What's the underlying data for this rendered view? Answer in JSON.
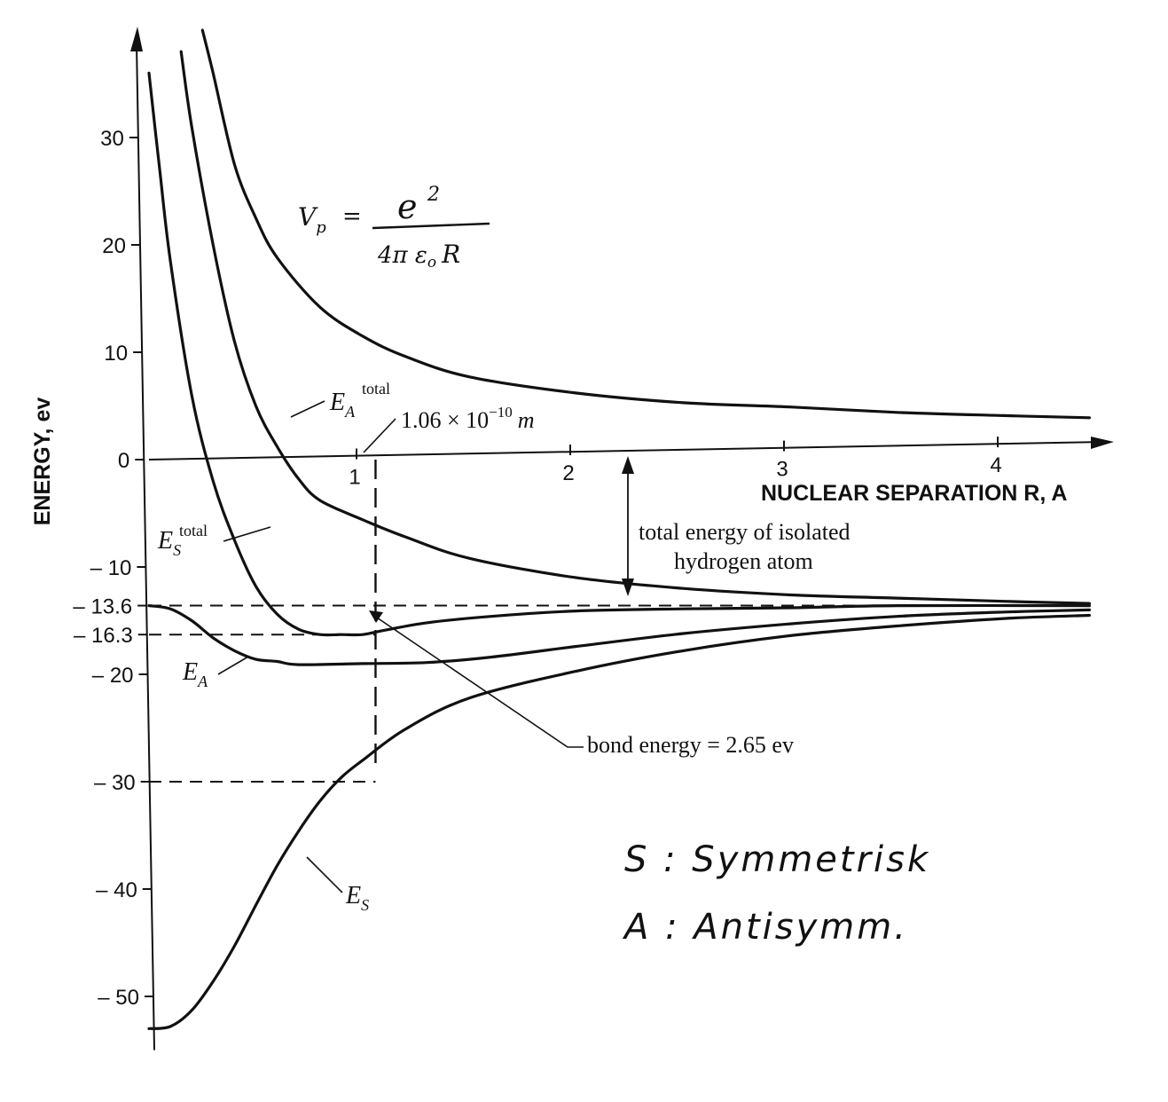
{
  "chart_data": {
    "type": "line",
    "title": "",
    "xlabel": "NUCLEAR SEPARATION R, A",
    "ylabel": "ENERGY, ev",
    "xlim": [
      0,
      4.4
    ],
    "ylim": [
      -55,
      40
    ],
    "x_ticks": [
      "1",
      "2",
      "3",
      "4"
    ],
    "y_ticks": [
      "30",
      "20",
      "10",
      "0",
      "– 10",
      "– 13.6",
      "– 16.3",
      "– 20",
      "– 30",
      "– 40",
      "– 50"
    ],
    "grid": false,
    "series": [
      {
        "name": "Vp",
        "points": [
          [
            0.25,
            40
          ],
          [
            0.3,
            36
          ],
          [
            0.4,
            27.5
          ],
          [
            0.5,
            22.5
          ],
          [
            0.6,
            18.8
          ],
          [
            0.8,
            14.2
          ],
          [
            1.0,
            11.5
          ],
          [
            1.2,
            9.6
          ],
          [
            1.5,
            7.7
          ],
          [
            2.0,
            6.2
          ],
          [
            2.5,
            5.3
          ],
          [
            3.0,
            4.9
          ],
          [
            3.5,
            4.4
          ],
          [
            4.0,
            4.1
          ],
          [
            4.4,
            3.9
          ]
        ]
      },
      {
        "name": "E_A total",
        "points": [
          [
            0.15,
            38
          ],
          [
            0.2,
            31
          ],
          [
            0.3,
            20
          ],
          [
            0.4,
            11
          ],
          [
            0.5,
            5
          ],
          [
            0.6,
            1.2
          ],
          [
            0.7,
            -1.8
          ],
          [
            0.8,
            -3.8
          ],
          [
            1.0,
            -5.6
          ],
          [
            1.2,
            -7.2
          ],
          [
            1.5,
            -9.2
          ],
          [
            2.0,
            -11.0
          ],
          [
            2.5,
            -12.0
          ],
          [
            3.0,
            -12.6
          ],
          [
            3.5,
            -12.9
          ],
          [
            4.0,
            -13.2
          ],
          [
            4.4,
            -13.4
          ]
        ]
      },
      {
        "name": "E_S total",
        "points": [
          [
            0.0,
            36
          ],
          [
            0.05,
            27
          ],
          [
            0.1,
            18.5
          ],
          [
            0.2,
            6
          ],
          [
            0.3,
            -2
          ],
          [
            0.4,
            -7.5
          ],
          [
            0.5,
            -11.8
          ],
          [
            0.6,
            -14.4
          ],
          [
            0.7,
            -15.8
          ],
          [
            0.8,
            -16.3
          ],
          [
            0.9,
            -16.3
          ],
          [
            1.0,
            -16.3
          ],
          [
            1.1,
            -15.9
          ],
          [
            1.3,
            -15.2
          ],
          [
            1.6,
            -14.6
          ],
          [
            2.0,
            -14.1
          ],
          [
            2.5,
            -13.9
          ],
          [
            3.0,
            -13.8
          ],
          [
            3.5,
            -13.6
          ],
          [
            4.4,
            -13.6
          ]
        ]
      },
      {
        "name": "E_A",
        "points": [
          [
            0.0,
            -13.6
          ],
          [
            0.1,
            -13.9
          ],
          [
            0.2,
            -15.0
          ],
          [
            0.3,
            -16.6
          ],
          [
            0.4,
            -17.8
          ],
          [
            0.5,
            -18.6
          ],
          [
            0.6,
            -18.8
          ],
          [
            0.7,
            -19.1
          ],
          [
            1.0,
            -19.0
          ],
          [
            1.3,
            -18.9
          ],
          [
            1.6,
            -18.4
          ],
          [
            2.0,
            -17.4
          ],
          [
            2.5,
            -16.2
          ],
          [
            3.0,
            -15.3
          ],
          [
            3.5,
            -14.6
          ],
          [
            4.0,
            -14.2
          ],
          [
            4.4,
            -14.0
          ]
        ]
      },
      {
        "name": "E_S",
        "points": [
          [
            0.0,
            -53.0
          ],
          [
            0.1,
            -52.8
          ],
          [
            0.2,
            -51.3
          ],
          [
            0.3,
            -48.6
          ],
          [
            0.4,
            -45.3
          ],
          [
            0.5,
            -41.5
          ],
          [
            0.6,
            -37.8
          ],
          [
            0.7,
            -34.6
          ],
          [
            0.8,
            -31.8
          ],
          [
            0.9,
            -29.6
          ],
          [
            1.0,
            -28.0
          ],
          [
            1.2,
            -25.1
          ],
          [
            1.5,
            -22.2
          ],
          [
            2.0,
            -19.7
          ],
          [
            2.5,
            -17.8
          ],
          [
            3.0,
            -16.4
          ],
          [
            3.5,
            -15.5
          ],
          [
            4.0,
            -14.8
          ],
          [
            4.4,
            -14.5
          ]
        ]
      }
    ],
    "annotations": {
      "vp_label": "V",
      "vp_sub": "p",
      "vp_eq": "=",
      "vp_num": "e",
      "vp_num_exp": "2",
      "vp_den": "4π ε",
      "vp_den_sub": "o",
      "vp_den_R": "R",
      "ea_total_label": "E",
      "ea_total_sub": "A",
      "ea_total_sup": "total",
      "es_total_label": "E",
      "es_total_sub": "S",
      "es_total_sup": "total",
      "ea_label": "E",
      "ea_sub": "A",
      "es_label": "E",
      "es_sub": "S",
      "separation": "1.06 × 10",
      "separation_exp": "−10",
      "separation_unit": "m",
      "isolated_line1": "total energy of isolated",
      "isolated_line2": "hydrogen atom",
      "bond_energy": "bond energy = 2.65 ev",
      "legend_s": "S :  Symmetrisk",
      "legend_a": "A :  Antisymm."
    },
    "equilibrium_x": 1.06,
    "reference_levels": [
      -13.6,
      -16.3,
      -30
    ]
  }
}
